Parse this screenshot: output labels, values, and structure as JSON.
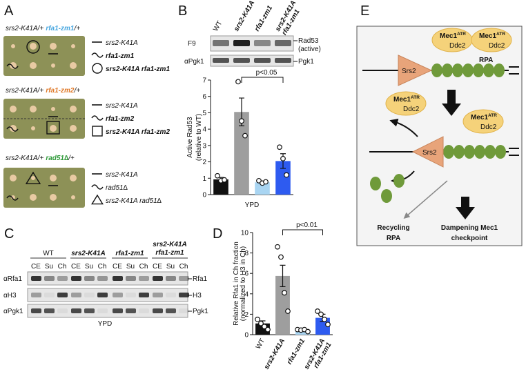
{
  "panel_labels": [
    "A",
    "B",
    "C",
    "D",
    "E"
  ],
  "panel_a": {
    "crosses": [
      {
        "parent": "srs2-K41A/+",
        "allele": "rfa1-zm1",
        "suffix": "/+",
        "legend": [
          "srs2-K41A",
          "rfa1-zm1",
          "srs2-K41A rfa1-zm1"
        ]
      },
      {
        "parent": "srs2-K41A/+",
        "allele": "rfa1-zm2",
        "suffix": "/+",
        "legend": [
          "srs2-K41A",
          "rfa1-zm2",
          "srs2-K41A rfa1-zm2"
        ]
      },
      {
        "parent": "srs2-K41A/+",
        "allele": "rad51∆",
        "suffix": "/+",
        "legend": [
          "srs2-K41A",
          "rad51∆",
          "srs2-K41A rad51∆"
        ]
      }
    ]
  },
  "panel_b": {
    "blot_rows": [
      "F9",
      "αPgk1"
    ],
    "blot_bands": [
      "Rad53",
      "(active)",
      "Pgk1"
    ]
  },
  "panel_c": {
    "strains": [
      "WT",
      "srs2-K41A",
      "rfa1-zm1",
      "srs2-K41A rfa1-zm1"
    ],
    "fractions": [
      "CE",
      "Su",
      "Ch"
    ],
    "blot_rows": [
      "αRfa1",
      "αH3",
      "αPgk1"
    ],
    "blot_bands": [
      "Rfa1",
      "H3",
      "Pgk1"
    ],
    "condition": "YPD"
  },
  "panel_e": {
    "srs2": "Srs2",
    "mec1": "Mec1",
    "atr": "ATR",
    "ddc2": "Ddc2",
    "rpa": "RPA",
    "recycling": [
      "Recycling",
      "RPA"
    ],
    "outcome": [
      "Dampening Mec1",
      "checkpoint"
    ]
  },
  "chart_data": [
    {
      "type": "bar",
      "y_label": [
        "Active Rad53",
        "(relative to WT)"
      ],
      "x_label": "YPD",
      "categories": [
        "WT",
        "srs2-K41A",
        "rfa1-zm1",
        "srs2-K41A rfa1-zm1"
      ],
      "colors": [
        "#111111",
        "#9e9e9e",
        "#a9d5f2",
        "#2e5bf0"
      ],
      "label_colors": [
        "#000000",
        "#8a8a8a",
        "#4da6e0",
        "#2a3fd8"
      ],
      "values": [
        0.93,
        5.05,
        0.75,
        2.05
      ],
      "errors": [
        0.12,
        0.85,
        0.05,
        0.45
      ],
      "points": [
        [
          1.15,
          0.85,
          0.9
        ],
        [
          6.9,
          4.5,
          3.6
        ],
        [
          0.85,
          0.7,
          0.78
        ],
        [
          2.9,
          2.2,
          1.2
        ]
      ],
      "annotation": "p<0.05",
      "ylim": [
        0,
        7
      ],
      "yticks": [
        0,
        1,
        2,
        3,
        4,
        5,
        6,
        7
      ]
    },
    {
      "type": "bar",
      "y_label": [
        "Relative Rfa1 in Ch fraction",
        "(normalized to H3 in Ch)"
      ],
      "categories": [
        "WT",
        "srs2-K41A",
        "rfa1-zm1",
        "srs2-K41A rfa1-zm1"
      ],
      "colors": [
        "#111111",
        "#9e9e9e",
        "#a9d5f2",
        "#2e5bf0"
      ],
      "label_colors": [
        "#000000",
        "#8a8a8a",
        "#4da6e0",
        "#2a3fd8"
      ],
      "values": [
        1.1,
        5.75,
        0.4,
        1.65
      ],
      "errors": [
        0.25,
        1.05,
        0.1,
        0.35
      ],
      "points": [
        [
          1.5,
          1.1,
          0.8,
          0.5
        ],
        [
          8.6,
          7.6,
          4.1,
          2.3
        ],
        [
          0.5,
          0.45,
          0.5,
          0.3
        ],
        [
          2.3,
          2.0,
          1.5,
          1.0
        ]
      ],
      "annotation": "p<0.01",
      "ylim": [
        0,
        10
      ],
      "yticks": [
        0,
        2,
        4,
        6,
        8,
        10
      ]
    }
  ]
}
